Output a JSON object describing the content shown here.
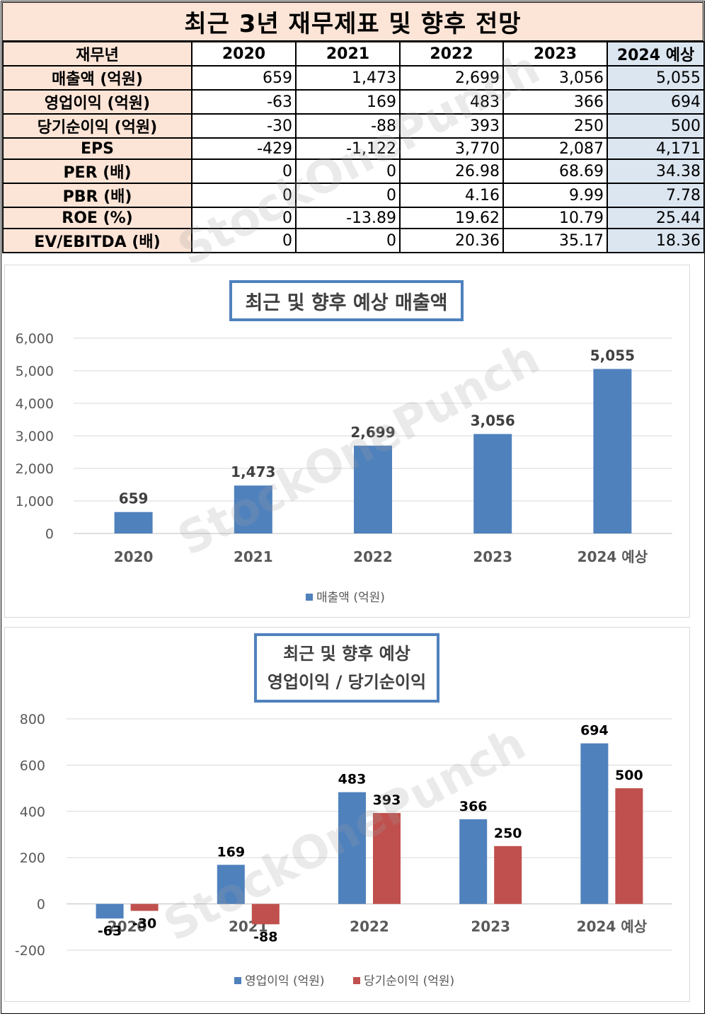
{
  "header": {
    "title": "최근 3년 재무제표 및 향후 전망"
  },
  "table": {
    "corner": "재무년",
    "columns": [
      "2020",
      "2021",
      "2022",
      "2023",
      "2024 예상"
    ],
    "rows": [
      {
        "label": "매출액 (억원)",
        "values": [
          "659",
          "1,473",
          "2,699",
          "3,056",
          "5,055"
        ]
      },
      {
        "label": "영업이익 (억원)",
        "values": [
          "-63",
          "169",
          "483",
          "366",
          "694"
        ]
      },
      {
        "label": "당기순이익 (억원)",
        "values": [
          "-30",
          "-88",
          "393",
          "250",
          "500"
        ]
      },
      {
        "label": "EPS",
        "values": [
          "-429",
          "-1,122",
          "3,770",
          "2,087",
          "4,171"
        ]
      },
      {
        "label": "PER (배)",
        "values": [
          "0",
          "0",
          "26.98",
          "68.69",
          "34.38"
        ]
      },
      {
        "label": "PBR (배)",
        "values": [
          "0",
          "0",
          "4.16",
          "9.99",
          "7.78"
        ]
      },
      {
        "label": "ROE (%)",
        "values": [
          "0",
          "-13.89",
          "19.62",
          "10.79",
          "25.44"
        ]
      },
      {
        "label": "EV/EBITDA (배)",
        "values": [
          "0",
          "0",
          "20.36",
          "35.17",
          "18.36"
        ]
      }
    ]
  },
  "watermark": "StockOnePunch",
  "colors": {
    "blue": "#4f81bd",
    "red": "#c0504d",
    "header_bg": "#fce4d6",
    "estimate_bg": "#dce6f1"
  },
  "chart_data": [
    {
      "type": "bar",
      "title": "최근 및 향후 예상 매출액",
      "categories": [
        "2020",
        "2021",
        "2022",
        "2023",
        "2024 예상"
      ],
      "series": [
        {
          "name": "매출액 (억원)",
          "values": [
            659,
            1473,
            2699,
            3056,
            5055
          ]
        }
      ],
      "data_labels": [
        "659",
        "1,473",
        "2,699",
        "3,056",
        "5,055"
      ],
      "yticks": [
        "0",
        "1,000",
        "2,000",
        "3,000",
        "4,000",
        "5,000",
        "6,000"
      ],
      "ylim": [
        0,
        6000
      ],
      "grid": true,
      "legend": "bottom"
    },
    {
      "type": "bar",
      "title_lines": [
        "최근 및 향후 예상",
        "영업이익 / 당기순이익"
      ],
      "categories": [
        "2020",
        "2021",
        "2022",
        "2023",
        "2024 예상"
      ],
      "series": [
        {
          "name": "영업이익 (억원)",
          "values": [
            -63,
            169,
            483,
            366,
            694
          ]
        },
        {
          "name": "당기순이익 (억원)",
          "values": [
            -30,
            -88,
            393,
            250,
            500
          ]
        }
      ],
      "data_labels": [
        [
          "-63",
          "169",
          "483",
          "366",
          "694"
        ],
        [
          "-30",
          "-88",
          "393",
          "250",
          "500"
        ]
      ],
      "yticks": [
        "-200",
        "0",
        "200",
        "400",
        "600",
        "800"
      ],
      "ylim": [
        -200,
        800
      ],
      "grid": true,
      "legend": "bottom"
    }
  ]
}
